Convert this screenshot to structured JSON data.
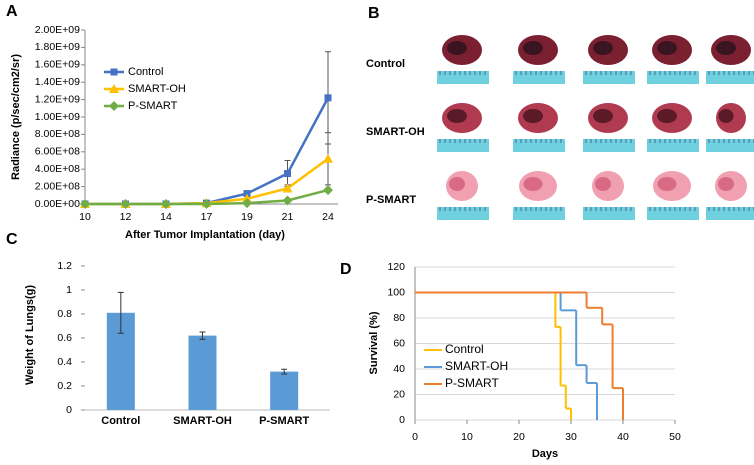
{
  "chart_data": [
    {
      "type": "line",
      "panel": "A",
      "categories": [
        "10",
        "12",
        "14",
        "17",
        "19",
        "21",
        "24"
      ],
      "xlabel": "After Tumor Implantation (day)",
      "ylabel": "Radiance (p/sec/cm2/sr)",
      "ylim": [
        0,
        2000000000
      ],
      "yticks": [
        {
          "value": 0,
          "label": "0.00E+00"
        },
        {
          "value": 200000000,
          "label": "2.00E+08"
        },
        {
          "value": 400000000,
          "label": "4.00E+08"
        },
        {
          "value": 600000000,
          "label": "6.00E+08"
        },
        {
          "value": 800000000,
          "label": "8.00E+08"
        },
        {
          "value": 1000000000,
          "label": "1.00E+09"
        },
        {
          "value": 1200000000,
          "label": "1.20E+09"
        },
        {
          "value": 1400000000,
          "label": "1.40E+09"
        },
        {
          "value": 1600000000,
          "label": "1.60E+09"
        },
        {
          "value": 1800000000,
          "label": "1.80E+09"
        },
        {
          "value": 2000000000,
          "label": "2.00E+09"
        }
      ],
      "series": [
        {
          "name": "Control",
          "color": "#4472c4",
          "marker": "square",
          "values": [
            0,
            0,
            0,
            10000000,
            120000000,
            350000000,
            1220000000
          ],
          "errors": [
            null,
            null,
            null,
            null,
            20000000,
            150000000,
            530000000
          ]
        },
        {
          "name": "SMART-OH",
          "color": "#ffc000",
          "marker": "triangle",
          "values": [
            0,
            0,
            0,
            10000000,
            60000000,
            180000000,
            520000000
          ],
          "errors": [
            null,
            null,
            null,
            null,
            null,
            40000000,
            300000000
          ]
        },
        {
          "name": "P-SMART",
          "color": "#70ad47",
          "marker": "diamond",
          "values": [
            0,
            0,
            0,
            0,
            10000000,
            40000000,
            160000000
          ],
          "errors": [
            null,
            null,
            null,
            null,
            null,
            null,
            null
          ]
        }
      ]
    },
    {
      "type": "image",
      "panel": "B",
      "row_labels": [
        "Control",
        "SMART-OH",
        "P-SMART"
      ]
    },
    {
      "type": "bar",
      "panel": "C",
      "categories": [
        "Control",
        "SMART-OH",
        "P-SMART"
      ],
      "values": [
        0.81,
        0.62,
        0.32
      ],
      "errors": [
        0.17,
        0.03,
        0.02
      ],
      "color": "#5b9bd5",
      "ylabel": "Weight of Lungs(g)",
      "ylim": [
        0,
        1.2
      ],
      "yticks": [
        0,
        0.2,
        0.4,
        0.6,
        0.8,
        1,
        1.2
      ]
    },
    {
      "type": "step",
      "panel": "D",
      "xlabel": "Days",
      "ylabel": "Survival (%)",
      "xlim": [
        0,
        50
      ],
      "xticks": [
        0,
        10,
        20,
        30,
        40,
        50
      ],
      "ylim": [
        0,
        120
      ],
      "yticks": [
        0,
        20,
        40,
        60,
        80,
        100,
        120
      ],
      "grid": true,
      "series": [
        {
          "name": "Control",
          "color": "#ffc000",
          "x": [
            0,
            27,
            28,
            29,
            30
          ],
          "values": [
            100,
            73,
            27,
            9,
            0
          ]
        },
        {
          "name": "SMART-OH",
          "color": "#5b9bd5",
          "x": [
            0,
            28,
            31,
            33,
            35
          ],
          "values": [
            100,
            86,
            43,
            29,
            0
          ]
        },
        {
          "name": "P-SMART",
          "color": "#ed7d31",
          "x": [
            0,
            33,
            36,
            38,
            40
          ],
          "values": [
            100,
            88,
            75,
            25,
            0
          ]
        }
      ]
    }
  ]
}
